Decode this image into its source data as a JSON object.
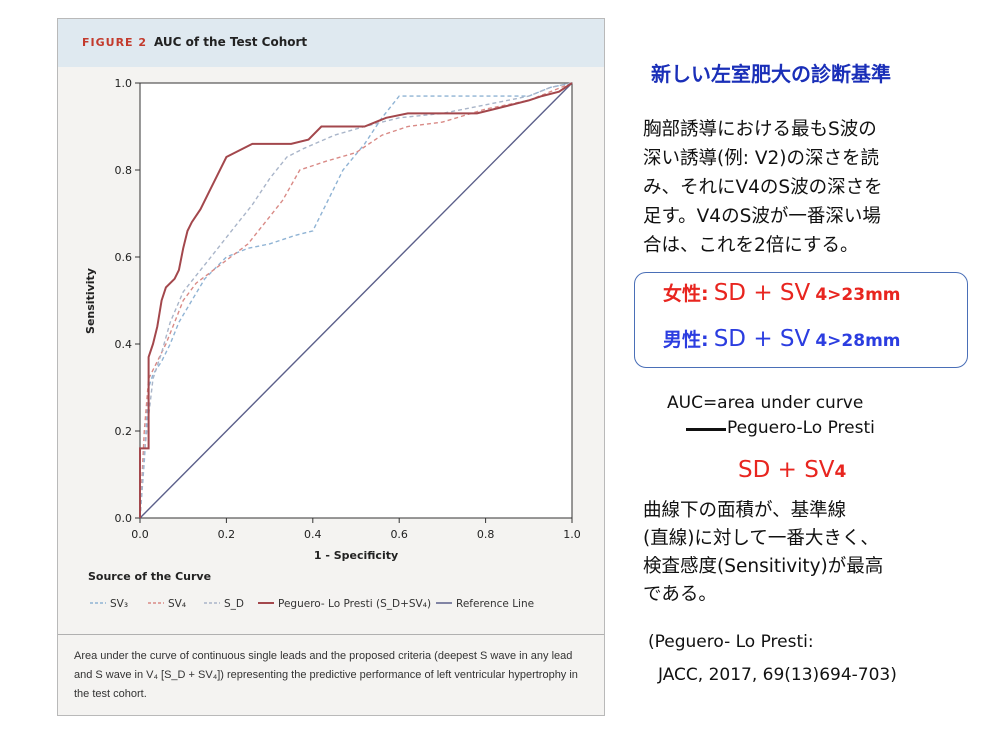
{
  "figure": {
    "label": "FIGURE 2",
    "title": "AUC of the Test Cohort",
    "caption": "Area under the curve of continuous single leads and the proposed criteria (deepest S wave in any lead and S wave in V₄ [S_D + SV₄]) representing the predictive performance of left ventricular hypertrophy in the test cohort."
  },
  "chart_data": {
    "type": "line",
    "xlabel": "1 - Specificity",
    "ylabel": "Sensitivity",
    "xlim": [
      0,
      1
    ],
    "ylim": [
      0,
      1
    ],
    "x_ticks": [
      "0.0",
      "0.2",
      "0.4",
      "0.6",
      "0.8",
      "1.0"
    ],
    "y_ticks": [
      "0.0",
      "0.2",
      "0.4",
      "0.6",
      "0.8",
      "1.0"
    ],
    "grid": false,
    "legend_title": "Source of the Curve",
    "legend_position": "bottom",
    "series": [
      {
        "name": "SV₃",
        "color": "#8fb3d4",
        "style": "dashed",
        "x": [
          0,
          0.01,
          0.02,
          0.03,
          0.05,
          0.07,
          0.09,
          0.12,
          0.15,
          0.2,
          0.25,
          0.3,
          0.36,
          0.4,
          0.43,
          0.47,
          0.52,
          0.56,
          0.6,
          0.7,
          0.8,
          0.9,
          0.95,
          1.0
        ],
        "y": [
          0,
          0.13,
          0.3,
          0.33,
          0.36,
          0.4,
          0.45,
          0.5,
          0.55,
          0.6,
          0.62,
          0.63,
          0.65,
          0.66,
          0.72,
          0.8,
          0.86,
          0.92,
          0.97,
          0.97,
          0.97,
          0.97,
          0.99,
          1.0
        ]
      },
      {
        "name": "SV₄",
        "color": "#d98a86",
        "style": "dashed",
        "x": [
          0,
          0.01,
          0.02,
          0.04,
          0.06,
          0.08,
          0.1,
          0.13,
          0.17,
          0.21,
          0.25,
          0.29,
          0.33,
          0.37,
          0.43,
          0.5,
          0.56,
          0.62,
          0.7,
          0.8,
          0.9,
          0.95,
          1.0
        ],
        "y": [
          0,
          0.2,
          0.32,
          0.36,
          0.4,
          0.45,
          0.5,
          0.54,
          0.57,
          0.6,
          0.63,
          0.68,
          0.73,
          0.8,
          0.82,
          0.84,
          0.88,
          0.9,
          0.91,
          0.94,
          0.96,
          0.98,
          1.0
        ]
      },
      {
        "name": "S_D",
        "color": "#a9b5c9",
        "style": "dashed",
        "x": [
          0,
          0.01,
          0.03,
          0.05,
          0.07,
          0.1,
          0.14,
          0.18,
          0.22,
          0.26,
          0.3,
          0.34,
          0.38,
          0.45,
          0.52,
          0.6,
          0.7,
          0.8,
          0.9,
          0.95,
          1.0
        ],
        "y": [
          0,
          0.15,
          0.32,
          0.38,
          0.45,
          0.52,
          0.57,
          0.62,
          0.67,
          0.72,
          0.78,
          0.83,
          0.85,
          0.88,
          0.9,
          0.92,
          0.93,
          0.95,
          0.97,
          0.99,
          1.0
        ]
      },
      {
        "name": "Peguero- Lo Presti (S_D+SV₄)",
        "color": "#a3474c",
        "style": "solid",
        "x": [
          0,
          0.0,
          0.02,
          0.02,
          0.03,
          0.04,
          0.05,
          0.06,
          0.08,
          0.09,
          0.1,
          0.11,
          0.12,
          0.14,
          0.16,
          0.18,
          0.2,
          0.22,
          0.26,
          0.3,
          0.35,
          0.39,
          0.42,
          0.47,
          0.52,
          0.57,
          0.62,
          0.67,
          0.72,
          0.78,
          0.82,
          0.86,
          0.9,
          0.93,
          0.97,
          1.0
        ],
        "y": [
          0,
          0.16,
          0.16,
          0.37,
          0.4,
          0.44,
          0.5,
          0.53,
          0.55,
          0.57,
          0.62,
          0.66,
          0.68,
          0.71,
          0.75,
          0.79,
          0.83,
          0.84,
          0.86,
          0.86,
          0.86,
          0.87,
          0.9,
          0.9,
          0.9,
          0.92,
          0.93,
          0.93,
          0.93,
          0.93,
          0.94,
          0.95,
          0.96,
          0.97,
          0.98,
          1.0
        ]
      },
      {
        "name": "Reference Line",
        "color": "#5b5f8a",
        "style": "solid",
        "x": [
          0,
          1
        ],
        "y": [
          0,
          1
        ]
      }
    ]
  },
  "notes": {
    "title": "新しい左室肥大の診断基準",
    "para_lines": [
      "胸部誘導における最もS波の",
      "深い誘導(例: V2)の深さを読",
      "み、それにV4のS波の深さを",
      "足す。V4のS波が一番深い場",
      "合は、これを2倍にする。"
    ],
    "female_label": "女性:",
    "male_label": "男性:",
    "formula": "SD + SV",
    "female_threshold": "4>23mm",
    "male_threshold": "4>28mm",
    "auc_def": "AUC=area under curve",
    "pl_label": "Peguero-Lo Presti",
    "pl_formula": "SD + SV",
    "pl_formula_sub": "4",
    "para2_lines": [
      "曲線下の面積が、基準線",
      "(直線)に対して一番大きく、",
      "検査感度(Sensitivity)が最高",
      "である。"
    ],
    "ref_line1": "(Peguero- Lo Presti:",
    "ref_line2": "JACC, 2017, 69(13)694-703)"
  },
  "colors": {
    "female": "#e8251f",
    "male": "#2b3de0",
    "title_blue": "#1a2fb8",
    "box_border": "#4a6fb7"
  }
}
